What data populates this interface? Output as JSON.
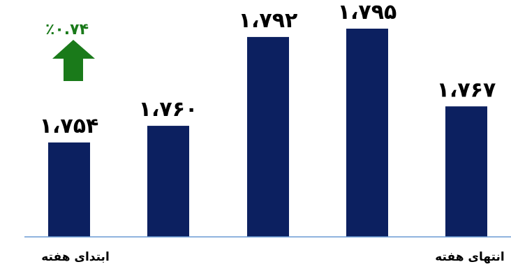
{
  "chart_data": {
    "type": "bar",
    "categories": [
      "ابتدای هفته",
      "",
      "",
      "",
      "انتهای هفته"
    ],
    "values": [
      1754,
      1760,
      1792,
      1795,
      1767
    ],
    "value_labels": [
      "۱،۷۵۴",
      "۱،۷۶۰",
      "۱،۷۹۲",
      "۱،۷۹۵",
      "۱،۷۶۷"
    ],
    "title": "",
    "xlabel": "",
    "ylabel": "",
    "ylim": [
      1720,
      1800
    ],
    "grid": false,
    "legend": "none",
    "annotation": {
      "text": "٪۰.۷۴",
      "direction": "up",
      "color": "#1a7a1a"
    },
    "colors": {
      "bar": "#0c2060",
      "baseline": "#6a9bd3",
      "arrow": "#1a7a1a",
      "text": "#000000"
    }
  }
}
